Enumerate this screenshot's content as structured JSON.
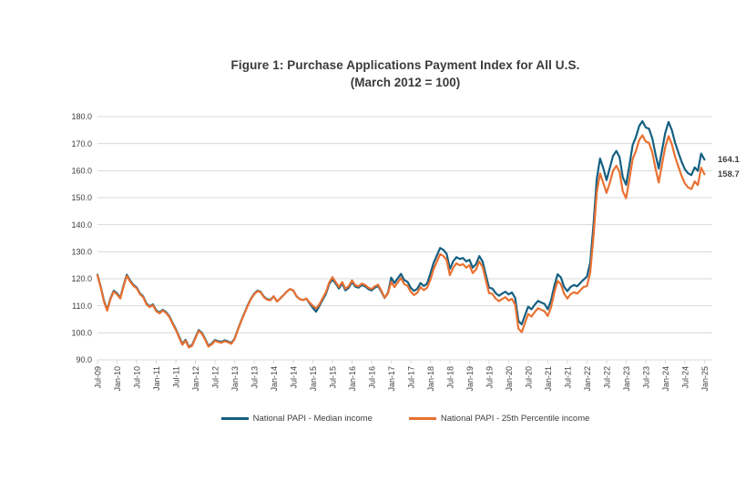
{
  "figure": {
    "title_line1": "Figure 1: Purchase Applications Payment Index for All U.S.",
    "title_line2": "(March 2012 = 100)"
  },
  "colors": {
    "series_median": "#156082",
    "series_25th": "#E97132",
    "gridline": "#D9D9D9",
    "axis_text": "#404040",
    "title_text": "#3B3B3B"
  },
  "chart_data": {
    "type": "line",
    "title": "Figure 1: Purchase Applications Payment Index for All U.S.",
    "subtitle": "(March 2012 = 100)",
    "x_frequency": "monthly",
    "x_start": "Jul-2009",
    "x_end": "Jan-2025",
    "x_tick_every_n_points": 6,
    "x_tick_labels": [
      "Jul-09",
      "Jan-10",
      "Jul-10",
      "Jan-11",
      "Jul-11",
      "Jan-12",
      "Jul-12",
      "Jan-13",
      "Jul-13",
      "Jan-14",
      "Jul-14",
      "Jan-15",
      "Jul-15",
      "Jan-16",
      "Jul-16",
      "Jan-17",
      "Jul-17",
      "Jan-18",
      "Jul-18",
      "Jan-19",
      "Jul-19",
      "Jan-20",
      "Jul-20",
      "Jan-21",
      "Jul-21",
      "Jan-22",
      "Jul-22",
      "Jan-23",
      "Jul-23",
      "Jan-24",
      "Jul-24",
      "Jan-25"
    ],
    "ylim": [
      90,
      180
    ],
    "y_tick_step": 10,
    "y_tick_labels": [
      "90.0",
      "100.0",
      "110.0",
      "120.0",
      "130.0",
      "140.0",
      "150.0",
      "160.0",
      "170.0",
      "180.0"
    ],
    "grid": "horizontal",
    "legend_position": "bottom",
    "series": [
      {
        "name": "National PAPI - Median income",
        "color": "#156082",
        "end_label": "164.1",
        "values": [
          121.5,
          117.0,
          111.8,
          108.5,
          112.8,
          115.6,
          114.6,
          113.0,
          117.6,
          121.5,
          119.4,
          117.7,
          116.8,
          114.6,
          113.5,
          110.9,
          109.8,
          110.5,
          108.3,
          107.5,
          108.5,
          107.7,
          106.2,
          103.7,
          101.4,
          98.6,
          95.9,
          97.4,
          94.9,
          95.5,
          98.3,
          101.0,
          100.0,
          97.8,
          95.2,
          96.0,
          97.3,
          96.9,
          96.6,
          97.2,
          96.8,
          96.2,
          97.8,
          101.2,
          104.3,
          107.2,
          110.1,
          112.6,
          114.4,
          115.6,
          115.2,
          113.4,
          112.4,
          112.2,
          113.5,
          111.6,
          112.7,
          113.9,
          115.2,
          116.2,
          115.7,
          113.5,
          112.5,
          112.1,
          112.7,
          110.9,
          109.2,
          107.8,
          109.9,
          112.2,
          114.4,
          118.0,
          119.8,
          118.2,
          116.4,
          118.2,
          115.7,
          116.7,
          118.8,
          117.1,
          116.7,
          117.7,
          117.2,
          116.2,
          115.7,
          116.7,
          117.3,
          115.2,
          112.9,
          114.8,
          120.4,
          118.4,
          120.1,
          121.8,
          119.5,
          118.9,
          116.7,
          115.5,
          116.3,
          118.4,
          117.3,
          118.2,
          121.8,
          125.8,
          128.6,
          131.4,
          130.7,
          129.2,
          123.6,
          126.4,
          128.0,
          127.3,
          127.7,
          126.4,
          127.0,
          124.1,
          125.4,
          128.4,
          126.4,
          121.4,
          116.7,
          116.4,
          114.7,
          113.7,
          114.5,
          115.2,
          114.2,
          114.9,
          112.9,
          104.4,
          103.1,
          106.4,
          109.7,
          108.7,
          110.4,
          111.8,
          111.2,
          110.7,
          108.7,
          112.0,
          117.4,
          121.7,
          120.5,
          117.0,
          115.4,
          117.0,
          117.7,
          117.2,
          118.5,
          119.7,
          120.8,
          126.0,
          140.0,
          157.0,
          164.5,
          161.0,
          156.5,
          161.0,
          165.5,
          167.3,
          165.0,
          157.5,
          154.8,
          162.0,
          169.5,
          172.5,
          176.5,
          178.3,
          176.0,
          175.5,
          172.0,
          166.0,
          160.8,
          167.5,
          174.0,
          178.0,
          175.0,
          170.3,
          166.8,
          163.3,
          160.5,
          159.0,
          158.4,
          161.2,
          159.9,
          166.3,
          164.1
        ]
      },
      {
        "name": "National PAPI - 25th Percentile income",
        "color": "#E97132",
        "end_label": "158.7",
        "values": [
          121.2,
          116.7,
          111.5,
          108.2,
          112.5,
          115.2,
          114.2,
          112.7,
          117.2,
          121.1,
          119.0,
          117.4,
          116.5,
          114.3,
          113.2,
          110.6,
          109.5,
          110.2,
          108.0,
          107.2,
          108.2,
          107.4,
          105.9,
          103.4,
          101.1,
          98.3,
          95.6,
          97.1,
          94.6,
          95.2,
          98.0,
          100.7,
          99.7,
          97.5,
          94.9,
          95.7,
          97.0,
          96.6,
          96.3,
          96.9,
          96.5,
          95.9,
          97.6,
          101.0,
          104.1,
          107.0,
          109.9,
          112.4,
          114.2,
          115.4,
          115.0,
          113.2,
          112.2,
          112.0,
          113.5,
          111.6,
          112.7,
          113.9,
          115.2,
          116.2,
          115.7,
          113.5,
          112.5,
          112.1,
          112.7,
          111.2,
          110.0,
          109.0,
          110.5,
          112.8,
          115.0,
          118.6,
          120.6,
          118.8,
          117.0,
          118.8,
          116.3,
          117.3,
          119.4,
          117.6,
          117.2,
          118.2,
          117.7,
          116.7,
          116.2,
          117.2,
          117.8,
          115.6,
          113.0,
          114.5,
          118.9,
          116.9,
          118.6,
          120.3,
          118.0,
          117.4,
          115.2,
          114.0,
          114.8,
          116.9,
          115.8,
          116.7,
          119.5,
          123.5,
          126.3,
          129.1,
          128.4,
          126.9,
          121.3,
          124.1,
          125.7,
          125.0,
          125.4,
          124.1,
          125.0,
          122.1,
          123.4,
          126.4,
          124.4,
          119.4,
          114.7,
          114.4,
          112.7,
          111.7,
          112.5,
          113.2,
          111.9,
          112.6,
          110.4,
          101.6,
          100.2,
          103.6,
          107.0,
          106.0,
          107.7,
          109.1,
          108.5,
          108.0,
          106.2,
          109.5,
          114.9,
          119.2,
          118.0,
          114.5,
          112.7,
          114.3,
          115.0,
          114.5,
          115.8,
          117.0,
          117.3,
          122.3,
          135.8,
          152.0,
          159.0,
          155.5,
          151.8,
          155.5,
          160.0,
          161.8,
          159.5,
          152.3,
          149.8,
          156.8,
          164.3,
          167.3,
          171.3,
          173.1,
          170.8,
          170.3,
          166.8,
          160.8,
          155.6,
          162.3,
          168.8,
          172.8,
          169.8,
          165.1,
          161.6,
          158.1,
          155.3,
          153.8,
          153.2,
          156.0,
          154.7,
          161.1,
          158.7
        ]
      }
    ],
    "annotations": [
      {
        "text": "164.1",
        "attached_to": "last point of National PAPI - Median income"
      },
      {
        "text": "158.7",
        "attached_to": "last point of National PAPI - 25th Percentile income"
      }
    ]
  }
}
